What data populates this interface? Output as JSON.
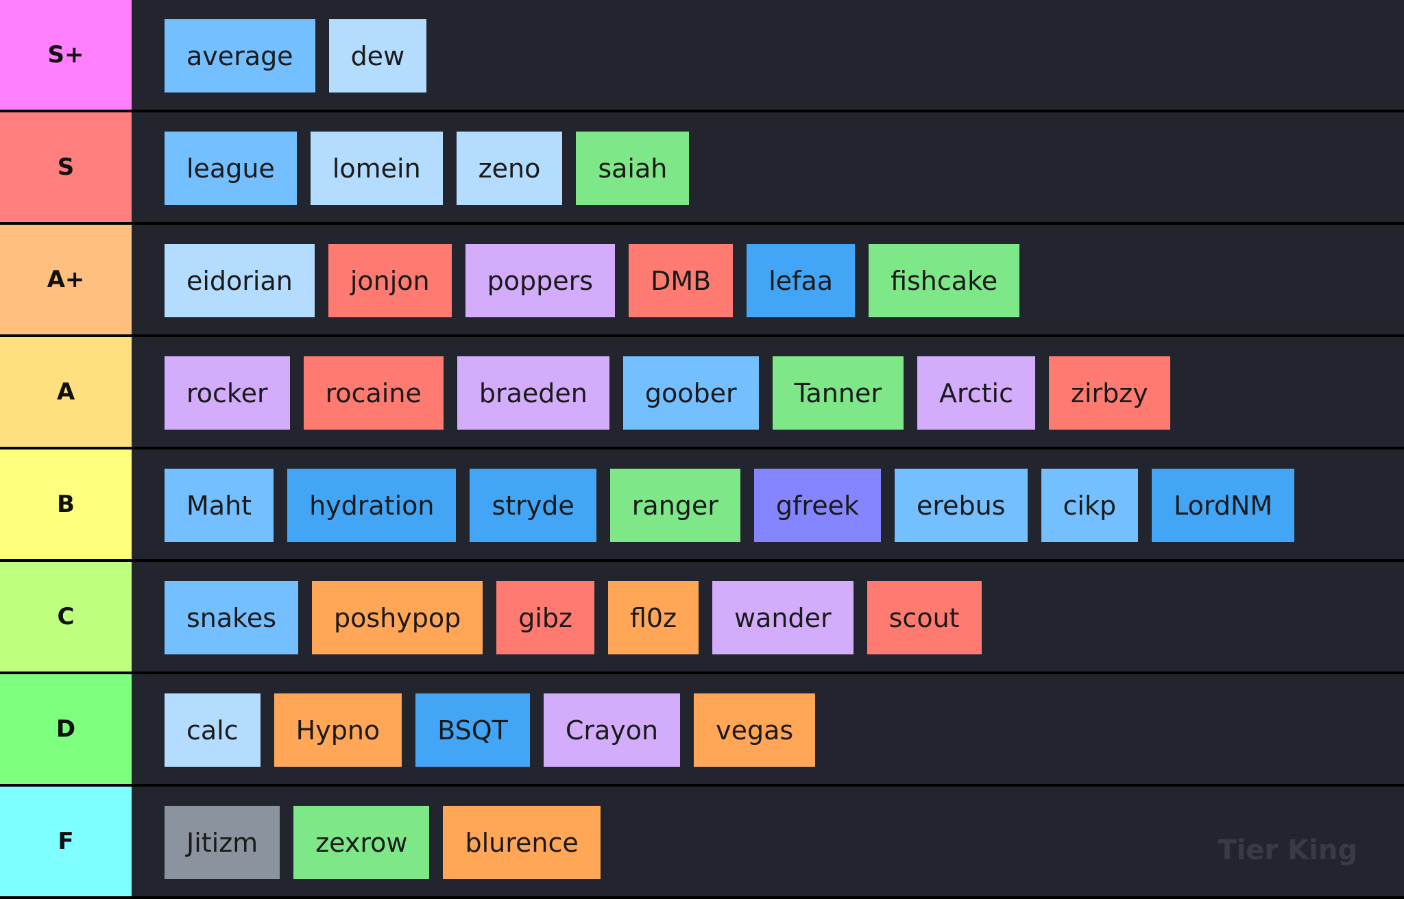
{
  "tiers": [
    {
      "label": "S+",
      "color": "#ff7fff",
      "items": [
        {
          "text": "average",
          "color": "#74bfff"
        },
        {
          "text": "dew",
          "color": "#b3dcff"
        }
      ]
    },
    {
      "label": "S",
      "color": "#ff7f7f",
      "items": [
        {
          "text": "league",
          "color": "#74bfff"
        },
        {
          "text": "lomein",
          "color": "#b3dcff"
        },
        {
          "text": "zeno",
          "color": "#b3dcff"
        },
        {
          "text": "saiah",
          "color": "#7ee787"
        }
      ]
    },
    {
      "label": "A+",
      "color": "#ffbf7f",
      "items": [
        {
          "text": "eidorian",
          "color": "#b3dcff"
        },
        {
          "text": "jonjon",
          "color": "#ff7b72"
        },
        {
          "text": "poppers",
          "color": "#d3adfc"
        },
        {
          "text": "DMB",
          "color": "#ff7b72"
        },
        {
          "text": "lefaa",
          "color": "#42a5f5"
        },
        {
          "text": "fishcake",
          "color": "#7ee787"
        }
      ]
    },
    {
      "label": "A",
      "color": "#ffdf7f",
      "items": [
        {
          "text": "rocker",
          "color": "#d3adfc"
        },
        {
          "text": "rocaine",
          "color": "#ff7b72"
        },
        {
          "text": "braeden",
          "color": "#d3adfc"
        },
        {
          "text": "goober",
          "color": "#74bfff"
        },
        {
          "text": "Tanner",
          "color": "#7ee787"
        },
        {
          "text": "Arctic",
          "color": "#d3adfc"
        },
        {
          "text": "zirbzy",
          "color": "#ff7b72"
        }
      ]
    },
    {
      "label": "B",
      "color": "#ffff7f",
      "items": [
        {
          "text": "Maht",
          "color": "#74bfff"
        },
        {
          "text": "hydration",
          "color": "#42a5f5"
        },
        {
          "text": "stryde",
          "color": "#42a5f5"
        },
        {
          "text": "ranger",
          "color": "#7ee787"
        },
        {
          "text": "gfreek",
          "color": "#8585ff"
        },
        {
          "text": "erebus",
          "color": "#74bfff"
        },
        {
          "text": "cikp",
          "color": "#74bfff"
        },
        {
          "text": "LordNM",
          "color": "#42a5f5"
        }
      ]
    },
    {
      "label": "C",
      "color": "#bfff7f",
      "items": [
        {
          "text": "snakes",
          "color": "#74bfff"
        },
        {
          "text": "poshypop",
          "color": "#ffa657"
        },
        {
          "text": "gibz",
          "color": "#ff7b72"
        },
        {
          "text": "fl0z",
          "color": "#ffa657"
        },
        {
          "text": "wander",
          "color": "#d3adfc"
        },
        {
          "text": "scout",
          "color": "#ff7b72"
        }
      ]
    },
    {
      "label": "D",
      "color": "#7fff7f",
      "items": [
        {
          "text": "calc",
          "color": "#b3dcff"
        },
        {
          "text": "Hypno",
          "color": "#ffa657"
        },
        {
          "text": "BSQT",
          "color": "#42a5f5"
        },
        {
          "text": "Crayon",
          "color": "#d3adfc"
        },
        {
          "text": "vegas",
          "color": "#ffa657"
        }
      ]
    },
    {
      "label": "F",
      "color": "#7fffff",
      "items": [
        {
          "text": "Jitizm",
          "color": "#8b949e"
        },
        {
          "text": "zexrow",
          "color": "#7ee787"
        },
        {
          "text": "blurence",
          "color": "#ffa657"
        }
      ]
    }
  ],
  "watermark": "Tier King"
}
